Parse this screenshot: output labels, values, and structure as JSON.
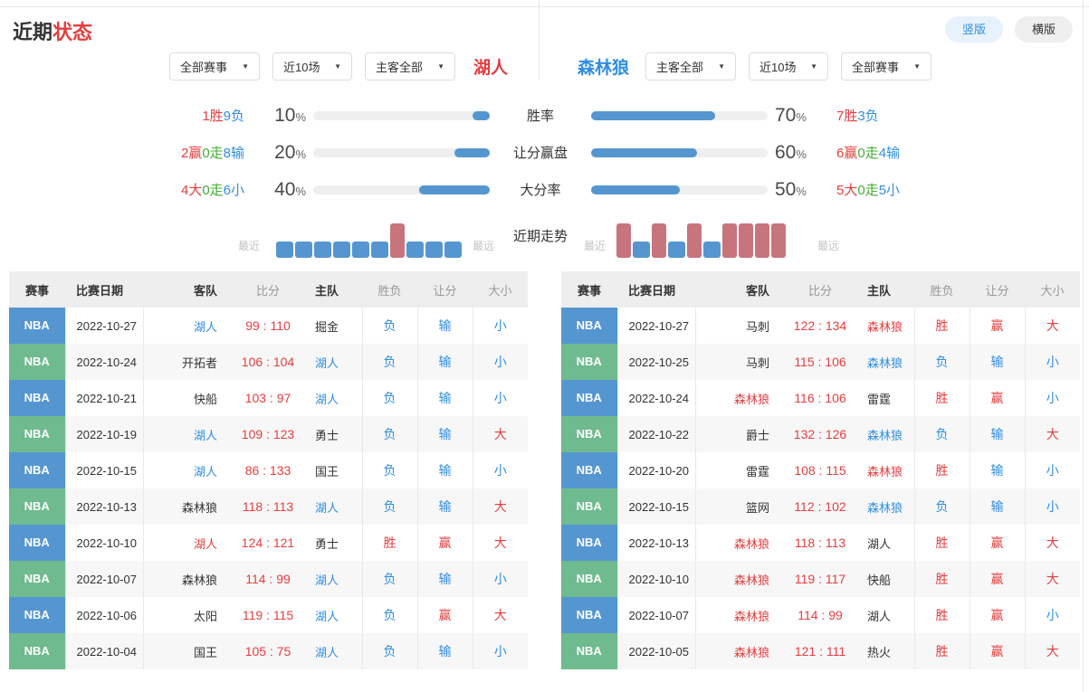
{
  "header": {
    "title_primary": "近期",
    "title_accent": "状态",
    "view_toggle": {
      "vertical": "竖版",
      "horizontal": "横版"
    }
  },
  "left_panel": {
    "team": "湖人",
    "filters": [
      "全部赛事",
      "近10场",
      "主客全部"
    ]
  },
  "right_panel": {
    "team": "森林狼",
    "filters": [
      "主客全部",
      "近10场",
      "全部赛事"
    ]
  },
  "stats": {
    "rows": [
      {
        "label": "胜率",
        "left_record": [
          [
            "1胜",
            "red"
          ],
          [
            "9负",
            "blue"
          ]
        ],
        "left_percent": 10,
        "right_percent": 70,
        "right_record": [
          [
            "7胜",
            "red"
          ],
          [
            "3负",
            "blue"
          ]
        ]
      },
      {
        "label": "让分赢盘",
        "left_record": [
          [
            "2赢",
            "red"
          ],
          [
            "0走",
            "green"
          ],
          [
            "8输",
            "blue"
          ]
        ],
        "left_percent": 20,
        "right_percent": 60,
        "right_record": [
          [
            "6赢",
            "red"
          ],
          [
            "0走",
            "green"
          ],
          [
            "4输",
            "blue"
          ]
        ]
      },
      {
        "label": "大分率",
        "left_record": [
          [
            "4大",
            "red"
          ],
          [
            "0走",
            "green"
          ],
          [
            "6小",
            "blue"
          ]
        ],
        "left_percent": 40,
        "right_percent": 50,
        "right_record": [
          [
            "5大",
            "red"
          ],
          [
            "0走",
            "green"
          ],
          [
            "5小",
            "blue"
          ]
        ]
      }
    ]
  },
  "trend": {
    "label": "近期走势",
    "near": "最近",
    "far": "最远",
    "left": [
      "loss",
      "loss",
      "loss",
      "loss",
      "loss",
      "loss",
      "win",
      "loss",
      "loss",
      "loss"
    ],
    "right": [
      "win",
      "loss",
      "win",
      "loss",
      "win",
      "loss",
      "win",
      "win",
      "win",
      "win"
    ]
  },
  "tables": {
    "headers": [
      "赛事",
      "比赛日期",
      "客队",
      "比分",
      "主队",
      "胜负",
      "让分",
      "大小"
    ],
    "left_rows": [
      {
        "league": "NBA",
        "date": "2022-10-27",
        "away": "湖人",
        "away_cls": "blue",
        "score": "99 : 110",
        "home": "掘金",
        "home_cls": "dark",
        "wl": "负",
        "asia": "输",
        "ou": "小"
      },
      {
        "league": "NBA",
        "date": "2022-10-24",
        "away": "开拓者",
        "away_cls": "dark",
        "score": "106 : 104",
        "home": "湖人",
        "home_cls": "blue",
        "wl": "负",
        "asia": "输",
        "ou": "小"
      },
      {
        "league": "NBA",
        "date": "2022-10-21",
        "away": "快船",
        "away_cls": "dark",
        "score": "103 : 97",
        "home": "湖人",
        "home_cls": "blue",
        "wl": "负",
        "asia": "输",
        "ou": "小"
      },
      {
        "league": "NBA",
        "date": "2022-10-19",
        "away": "湖人",
        "away_cls": "blue",
        "score": "109 : 123",
        "home": "勇士",
        "home_cls": "dark",
        "wl": "负",
        "asia": "输",
        "ou": "大"
      },
      {
        "league": "NBA",
        "date": "2022-10-15",
        "away": "湖人",
        "away_cls": "blue",
        "score": "86 : 133",
        "home": "国王",
        "home_cls": "dark",
        "wl": "负",
        "asia": "输",
        "ou": "小"
      },
      {
        "league": "NBA",
        "date": "2022-10-13",
        "away": "森林狼",
        "away_cls": "dark",
        "score": "118 : 113",
        "home": "湖人",
        "home_cls": "blue",
        "wl": "负",
        "asia": "输",
        "ou": "大"
      },
      {
        "league": "NBA",
        "date": "2022-10-10",
        "away": "湖人",
        "away_cls": "red",
        "score": "124 : 121",
        "home": "勇士",
        "home_cls": "dark",
        "wl": "胜",
        "asia": "赢",
        "ou": "大"
      },
      {
        "league": "NBA",
        "date": "2022-10-07",
        "away": "森林狼",
        "away_cls": "dark",
        "score": "114 : 99",
        "home": "湖人",
        "home_cls": "blue",
        "wl": "负",
        "asia": "输",
        "ou": "小"
      },
      {
        "league": "NBA",
        "date": "2022-10-06",
        "away": "太阳",
        "away_cls": "dark",
        "score": "119 : 115",
        "home": "湖人",
        "home_cls": "blue",
        "wl": "负",
        "asia": "赢",
        "ou": "大"
      },
      {
        "league": "NBA",
        "date": "2022-10-04",
        "away": "国王",
        "away_cls": "dark",
        "score": "105 : 75",
        "home": "湖人",
        "home_cls": "blue",
        "wl": "负",
        "asia": "输",
        "ou": "小"
      }
    ],
    "right_rows": [
      {
        "league": "NBA",
        "date": "2022-10-27",
        "away": "马刺",
        "away_cls": "dark",
        "score": "122 : 134",
        "home": "森林狼",
        "home_cls": "red",
        "wl": "胜",
        "asia": "赢",
        "ou": "大"
      },
      {
        "league": "NBA",
        "date": "2022-10-25",
        "away": "马刺",
        "away_cls": "dark",
        "score": "115 : 106",
        "home": "森林狼",
        "home_cls": "blue",
        "wl": "负",
        "asia": "输",
        "ou": "小"
      },
      {
        "league": "NBA",
        "date": "2022-10-24",
        "away": "森林狼",
        "away_cls": "red",
        "score": "116 : 106",
        "home": "雷霆",
        "home_cls": "dark",
        "wl": "胜",
        "asia": "赢",
        "ou": "小"
      },
      {
        "league": "NBA",
        "date": "2022-10-22",
        "away": "爵士",
        "away_cls": "dark",
        "score": "132 : 126",
        "home": "森林狼",
        "home_cls": "blue",
        "wl": "负",
        "asia": "输",
        "ou": "大"
      },
      {
        "league": "NBA",
        "date": "2022-10-20",
        "away": "雷霆",
        "away_cls": "dark",
        "score": "108 : 115",
        "home": "森林狼",
        "home_cls": "red",
        "wl": "胜",
        "asia": "输",
        "ou": "小"
      },
      {
        "league": "NBA",
        "date": "2022-10-15",
        "away": "篮网",
        "away_cls": "dark",
        "score": "112 : 102",
        "home": "森林狼",
        "home_cls": "blue",
        "wl": "负",
        "asia": "输",
        "ou": "小"
      },
      {
        "league": "NBA",
        "date": "2022-10-13",
        "away": "森林狼",
        "away_cls": "red",
        "score": "118 : 113",
        "home": "湖人",
        "home_cls": "dark",
        "wl": "胜",
        "asia": "赢",
        "ou": "大"
      },
      {
        "league": "NBA",
        "date": "2022-10-10",
        "away": "森林狼",
        "away_cls": "red",
        "score": "119 : 117",
        "home": "快船",
        "home_cls": "dark",
        "wl": "胜",
        "asia": "赢",
        "ou": "大"
      },
      {
        "league": "NBA",
        "date": "2022-10-07",
        "away": "森林狼",
        "away_cls": "red",
        "score": "114 : 99",
        "home": "湖人",
        "home_cls": "dark",
        "wl": "胜",
        "asia": "赢",
        "ou": "小"
      },
      {
        "league": "NBA",
        "date": "2022-10-05",
        "away": "森林狼",
        "away_cls": "red",
        "score": "121 : 111",
        "home": "热火",
        "home_cls": "dark",
        "wl": "胜",
        "asia": "赢",
        "ou": "大"
      }
    ]
  },
  "colors": {
    "accent_blue": "#5596d0",
    "badge_green": "#6fba8e",
    "trend_win_red": "#c8747d",
    "text_red": "#e53e3e",
    "text_blue": "#2f8ee3",
    "text_green": "#44ad34",
    "pill_active_bg": "#e7f2fd",
    "header_bg": "#eeeeee",
    "alt_row_bg": "#f7f7f7"
  }
}
